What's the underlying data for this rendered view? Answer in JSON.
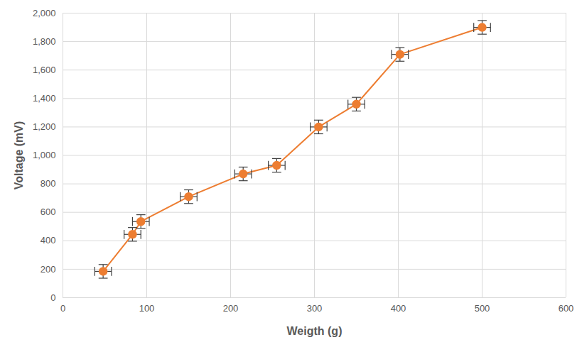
{
  "chart_data": {
    "type": "line",
    "x_label": "Weigth (g)",
    "y_label": "Voltage (mV)",
    "x": [
      48,
      83,
      93,
      150,
      215,
      255,
      305,
      350,
      402,
      500
    ],
    "values": [
      185,
      445,
      535,
      710,
      870,
      930,
      1200,
      1360,
      1710,
      1900
    ],
    "x_error": [
      10,
      10,
      10,
      10,
      10,
      10,
      10,
      10,
      10,
      10
    ],
    "y_error": [
      48,
      48,
      48,
      48,
      48,
      48,
      48,
      48,
      48,
      48
    ],
    "color": "#ed7d31",
    "marker": "circle",
    "xlim": [
      0,
      600
    ],
    "xticks": [
      0,
      100,
      200,
      300,
      400,
      500,
      600
    ],
    "ylim": [
      0,
      2000
    ],
    "yticks": [
      0,
      200,
      400,
      600,
      800,
      1000,
      1200,
      1400,
      1600,
      1800,
      2000
    ],
    "grid": true
  }
}
